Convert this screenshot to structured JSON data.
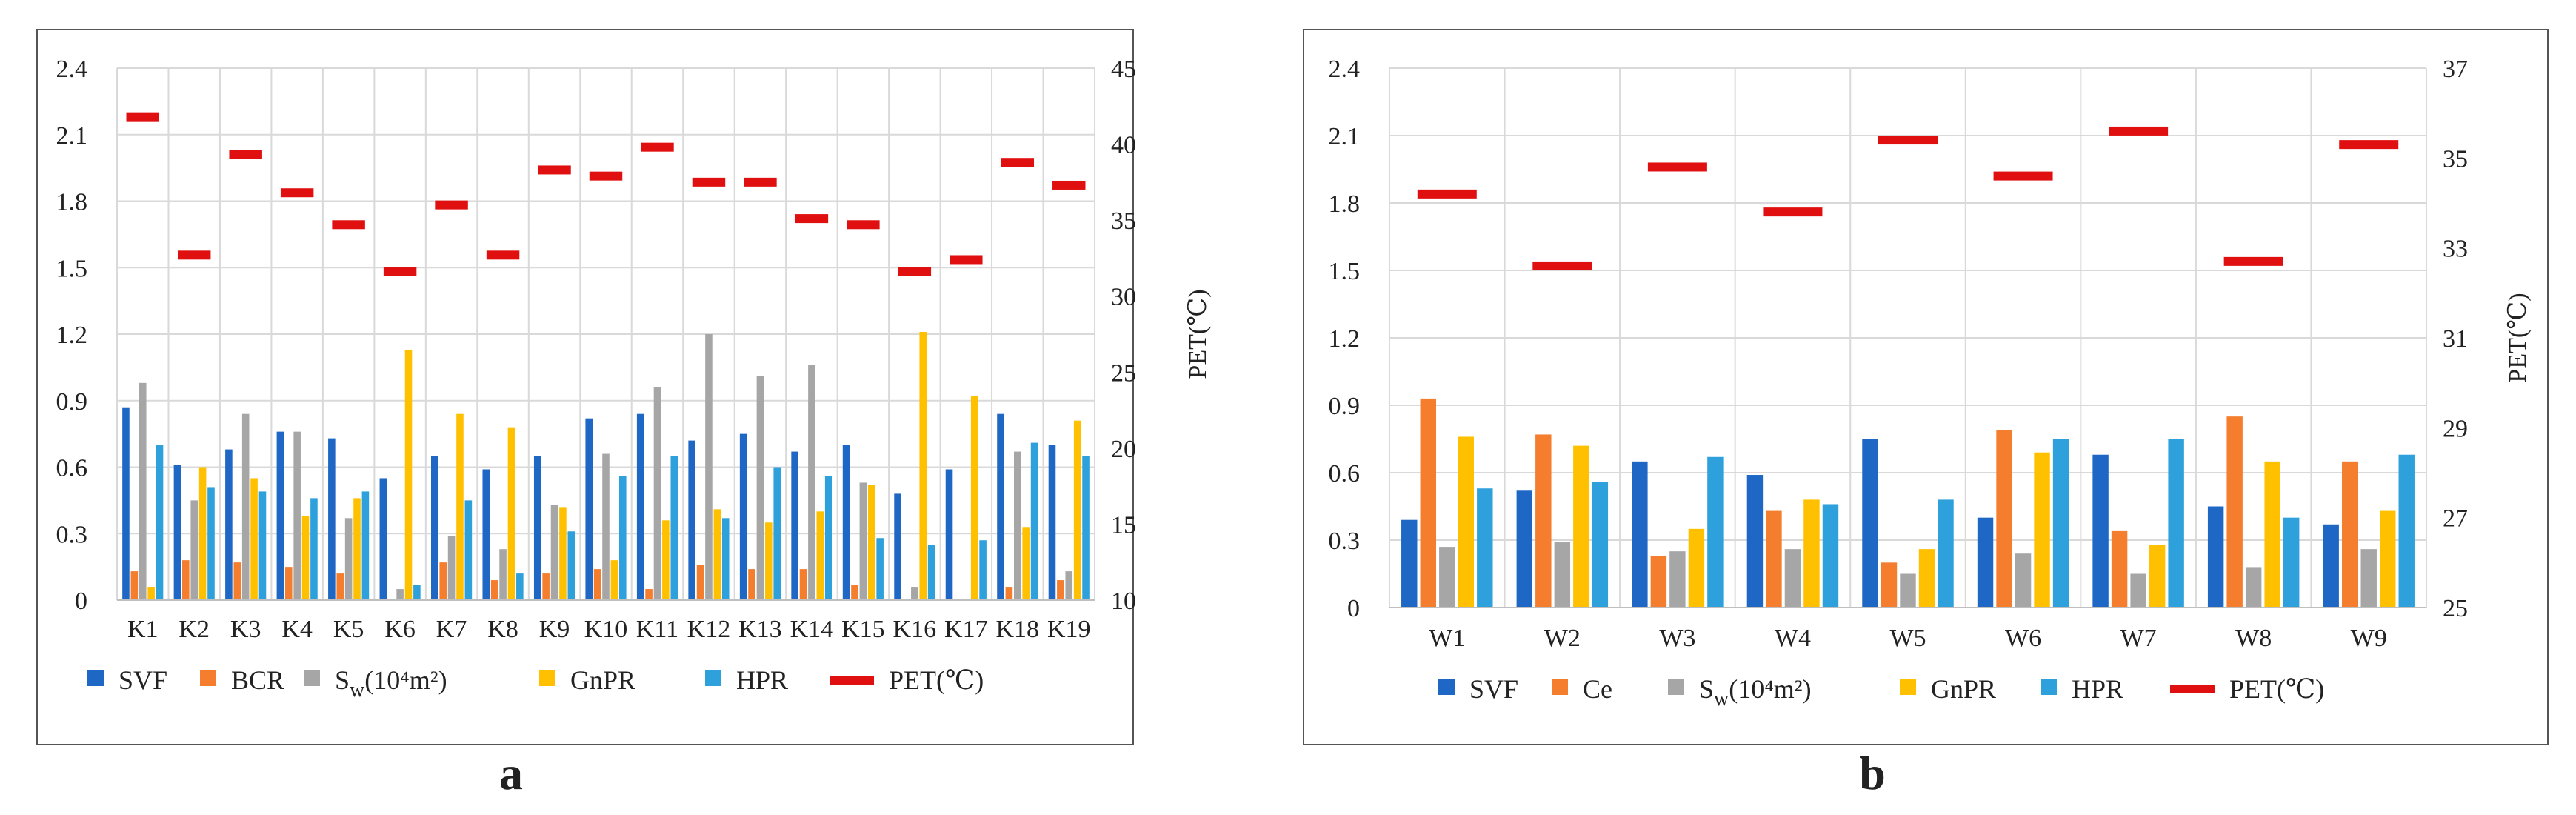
{
  "colors": {
    "SVF": "#1f67c4",
    "BCR": "#f47d2e",
    "Ce": "#f47d2e",
    "Sw": "#a6a6a6",
    "GnPR": "#ffc000",
    "HPR": "#2ea0dc",
    "PET": "#e01010",
    "grid": "#d9d9d9",
    "frame": "#555555"
  },
  "chart_data": [
    {
      "panel": "a",
      "type": "bar",
      "categories": [
        "K1",
        "K2",
        "K3",
        "K4",
        "K5",
        "K6",
        "K7",
        "K8",
        "K9",
        "K10",
        "K11",
        "K12",
        "K13",
        "K14",
        "K15",
        "K16",
        "K17",
        "K18",
        "K19"
      ],
      "series": [
        {
          "name": "SVF",
          "key": "SVF",
          "values": [
            0.87,
            0.61,
            0.68,
            0.76,
            0.73,
            0.55,
            0.65,
            0.59,
            0.65,
            0.82,
            0.84,
            0.72,
            0.75,
            0.67,
            0.7,
            0.48,
            0.59,
            0.84,
            0.7
          ]
        },
        {
          "name": "BCR",
          "key": "BCR",
          "values": [
            0.13,
            0.18,
            0.17,
            0.15,
            0.12,
            0.0,
            0.17,
            0.09,
            0.12,
            0.14,
            0.05,
            0.16,
            0.14,
            0.14,
            0.07,
            0.0,
            0.0,
            0.06,
            0.09
          ]
        },
        {
          "name": "Sw(10⁴m²)",
          "key": "Sw",
          "values": [
            0.98,
            0.45,
            0.84,
            0.76,
            0.37,
            0.05,
            0.29,
            0.23,
            0.43,
            0.66,
            0.96,
            1.2,
            1.01,
            1.06,
            0.53,
            0.06,
            0.0,
            0.67,
            0.13
          ]
        },
        {
          "name": "GnPR",
          "key": "GnPR",
          "values": [
            0.06,
            0.6,
            0.55,
            0.38,
            0.46,
            1.13,
            0.84,
            0.78,
            0.42,
            0.18,
            0.36,
            0.41,
            0.35,
            0.4,
            0.52,
            1.21,
            0.92,
            0.33,
            0.81
          ]
        },
        {
          "name": "HPR",
          "key": "HPR",
          "values": [
            0.7,
            0.51,
            0.49,
            0.46,
            0.49,
            0.07,
            0.45,
            0.12,
            0.31,
            0.56,
            0.65,
            0.37,
            0.6,
            0.56,
            0.28,
            0.25,
            0.27,
            0.71,
            0.65
          ]
        }
      ],
      "pet": {
        "name": "PET(℃)",
        "values": [
          41.8,
          32.7,
          39.3,
          36.8,
          34.7,
          31.6,
          36.0,
          32.7,
          38.3,
          37.9,
          39.8,
          37.5,
          37.5,
          35.1,
          34.7,
          31.6,
          32.4,
          38.8,
          37.3
        ]
      },
      "ylim": [
        0,
        2.4
      ],
      "yticks": [
        "0",
        "0.3",
        "0.6",
        "0.9",
        "1.2",
        "1.5",
        "1.8",
        "2.1",
        "2.4"
      ],
      "y2lim": [
        10,
        45
      ],
      "y2ticks": [
        "10",
        "15",
        "20",
        "25",
        "30",
        "35",
        "40",
        "45"
      ],
      "y2label": "PET(℃)",
      "legend": [
        "SVF",
        "BCR",
        "Sw(10⁴m²)",
        "GnPR",
        "HPR",
        "PET(℃)"
      ],
      "legend_position": "bottom"
    },
    {
      "panel": "b",
      "type": "bar",
      "categories": [
        "W1",
        "W2",
        "W3",
        "W4",
        "W5",
        "W6",
        "W7",
        "W8",
        "W9"
      ],
      "series": [
        {
          "name": "SVF",
          "key": "SVF",
          "values": [
            0.39,
            0.52,
            0.65,
            0.59,
            0.75,
            0.4,
            0.68,
            0.45,
            0.37
          ]
        },
        {
          "name": "Ce",
          "key": "Ce",
          "values": [
            0.93,
            0.77,
            0.23,
            0.43,
            0.2,
            0.79,
            0.34,
            0.85,
            0.65
          ]
        },
        {
          "name": "Sw(10⁴m²)",
          "key": "Sw",
          "values": [
            0.27,
            0.29,
            0.25,
            0.26,
            0.15,
            0.24,
            0.15,
            0.18,
            0.26
          ]
        },
        {
          "name": "GnPR",
          "key": "GnPR",
          "values": [
            0.76,
            0.72,
            0.35,
            0.48,
            0.26,
            0.69,
            0.28,
            0.65,
            0.43
          ]
        },
        {
          "name": "HPR",
          "key": "HPR",
          "values": [
            0.53,
            0.56,
            0.67,
            0.46,
            0.48,
            0.75,
            0.75,
            0.4,
            0.68
          ]
        }
      ],
      "pet": {
        "name": "PET(℃)",
        "values": [
          34.2,
          32.6,
          34.8,
          33.8,
          35.4,
          34.6,
          35.6,
          32.7,
          35.3
        ]
      },
      "ylim": [
        0,
        2.4
      ],
      "yticks": [
        "0",
        "0.3",
        "0.6",
        "0.9",
        "1.2",
        "1.5",
        "1.8",
        "2.1",
        "2.4"
      ],
      "y2lim": [
        25,
        37
      ],
      "y2ticks": [
        "25",
        "27",
        "29",
        "31",
        "33",
        "35",
        "37"
      ],
      "y2label": "PET(℃)",
      "legend": [
        "SVF",
        "Ce",
        "Sw(10⁴m²)",
        "GnPR",
        "HPR",
        "PET(℃)"
      ],
      "legend_position": "bottom"
    }
  ]
}
